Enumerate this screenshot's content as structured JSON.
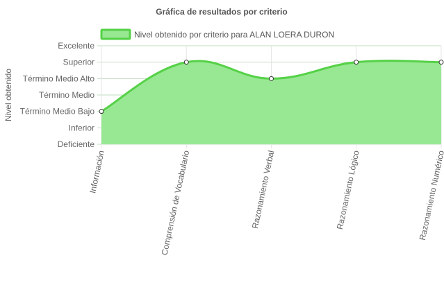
{
  "chart_data": {
    "type": "area",
    "title": "Gráfica de resultados por criterio",
    "ylabel": "Nivel obtenido",
    "xlabel": "",
    "categories": [
      "Información",
      "Comprensión de Vocabulario",
      "Razonamiento Verbal",
      "Razonamiento Lógico",
      "Razonamiento Numérico"
    ],
    "y_levels": [
      "Deficiente",
      "Inferior",
      "Término Medio Bajo",
      "Término Medio",
      "Término Medio Alto",
      "Superior",
      "Excelente"
    ],
    "ylim": [
      0,
      6
    ],
    "series": [
      {
        "name": "Nivel obtenido por criterio para ALAN LOERA DURON",
        "values": [
          2,
          5,
          4,
          5,
          5
        ],
        "value_labels": [
          "Término Medio Bajo",
          "Superior",
          "Término Medio Alto",
          "Superior",
          "Superior"
        ],
        "line_color": "#55d147",
        "fill_color": "#98e893"
      }
    ],
    "legend": "top-center",
    "grid": true,
    "point_marker_color": "#ffffff"
  }
}
